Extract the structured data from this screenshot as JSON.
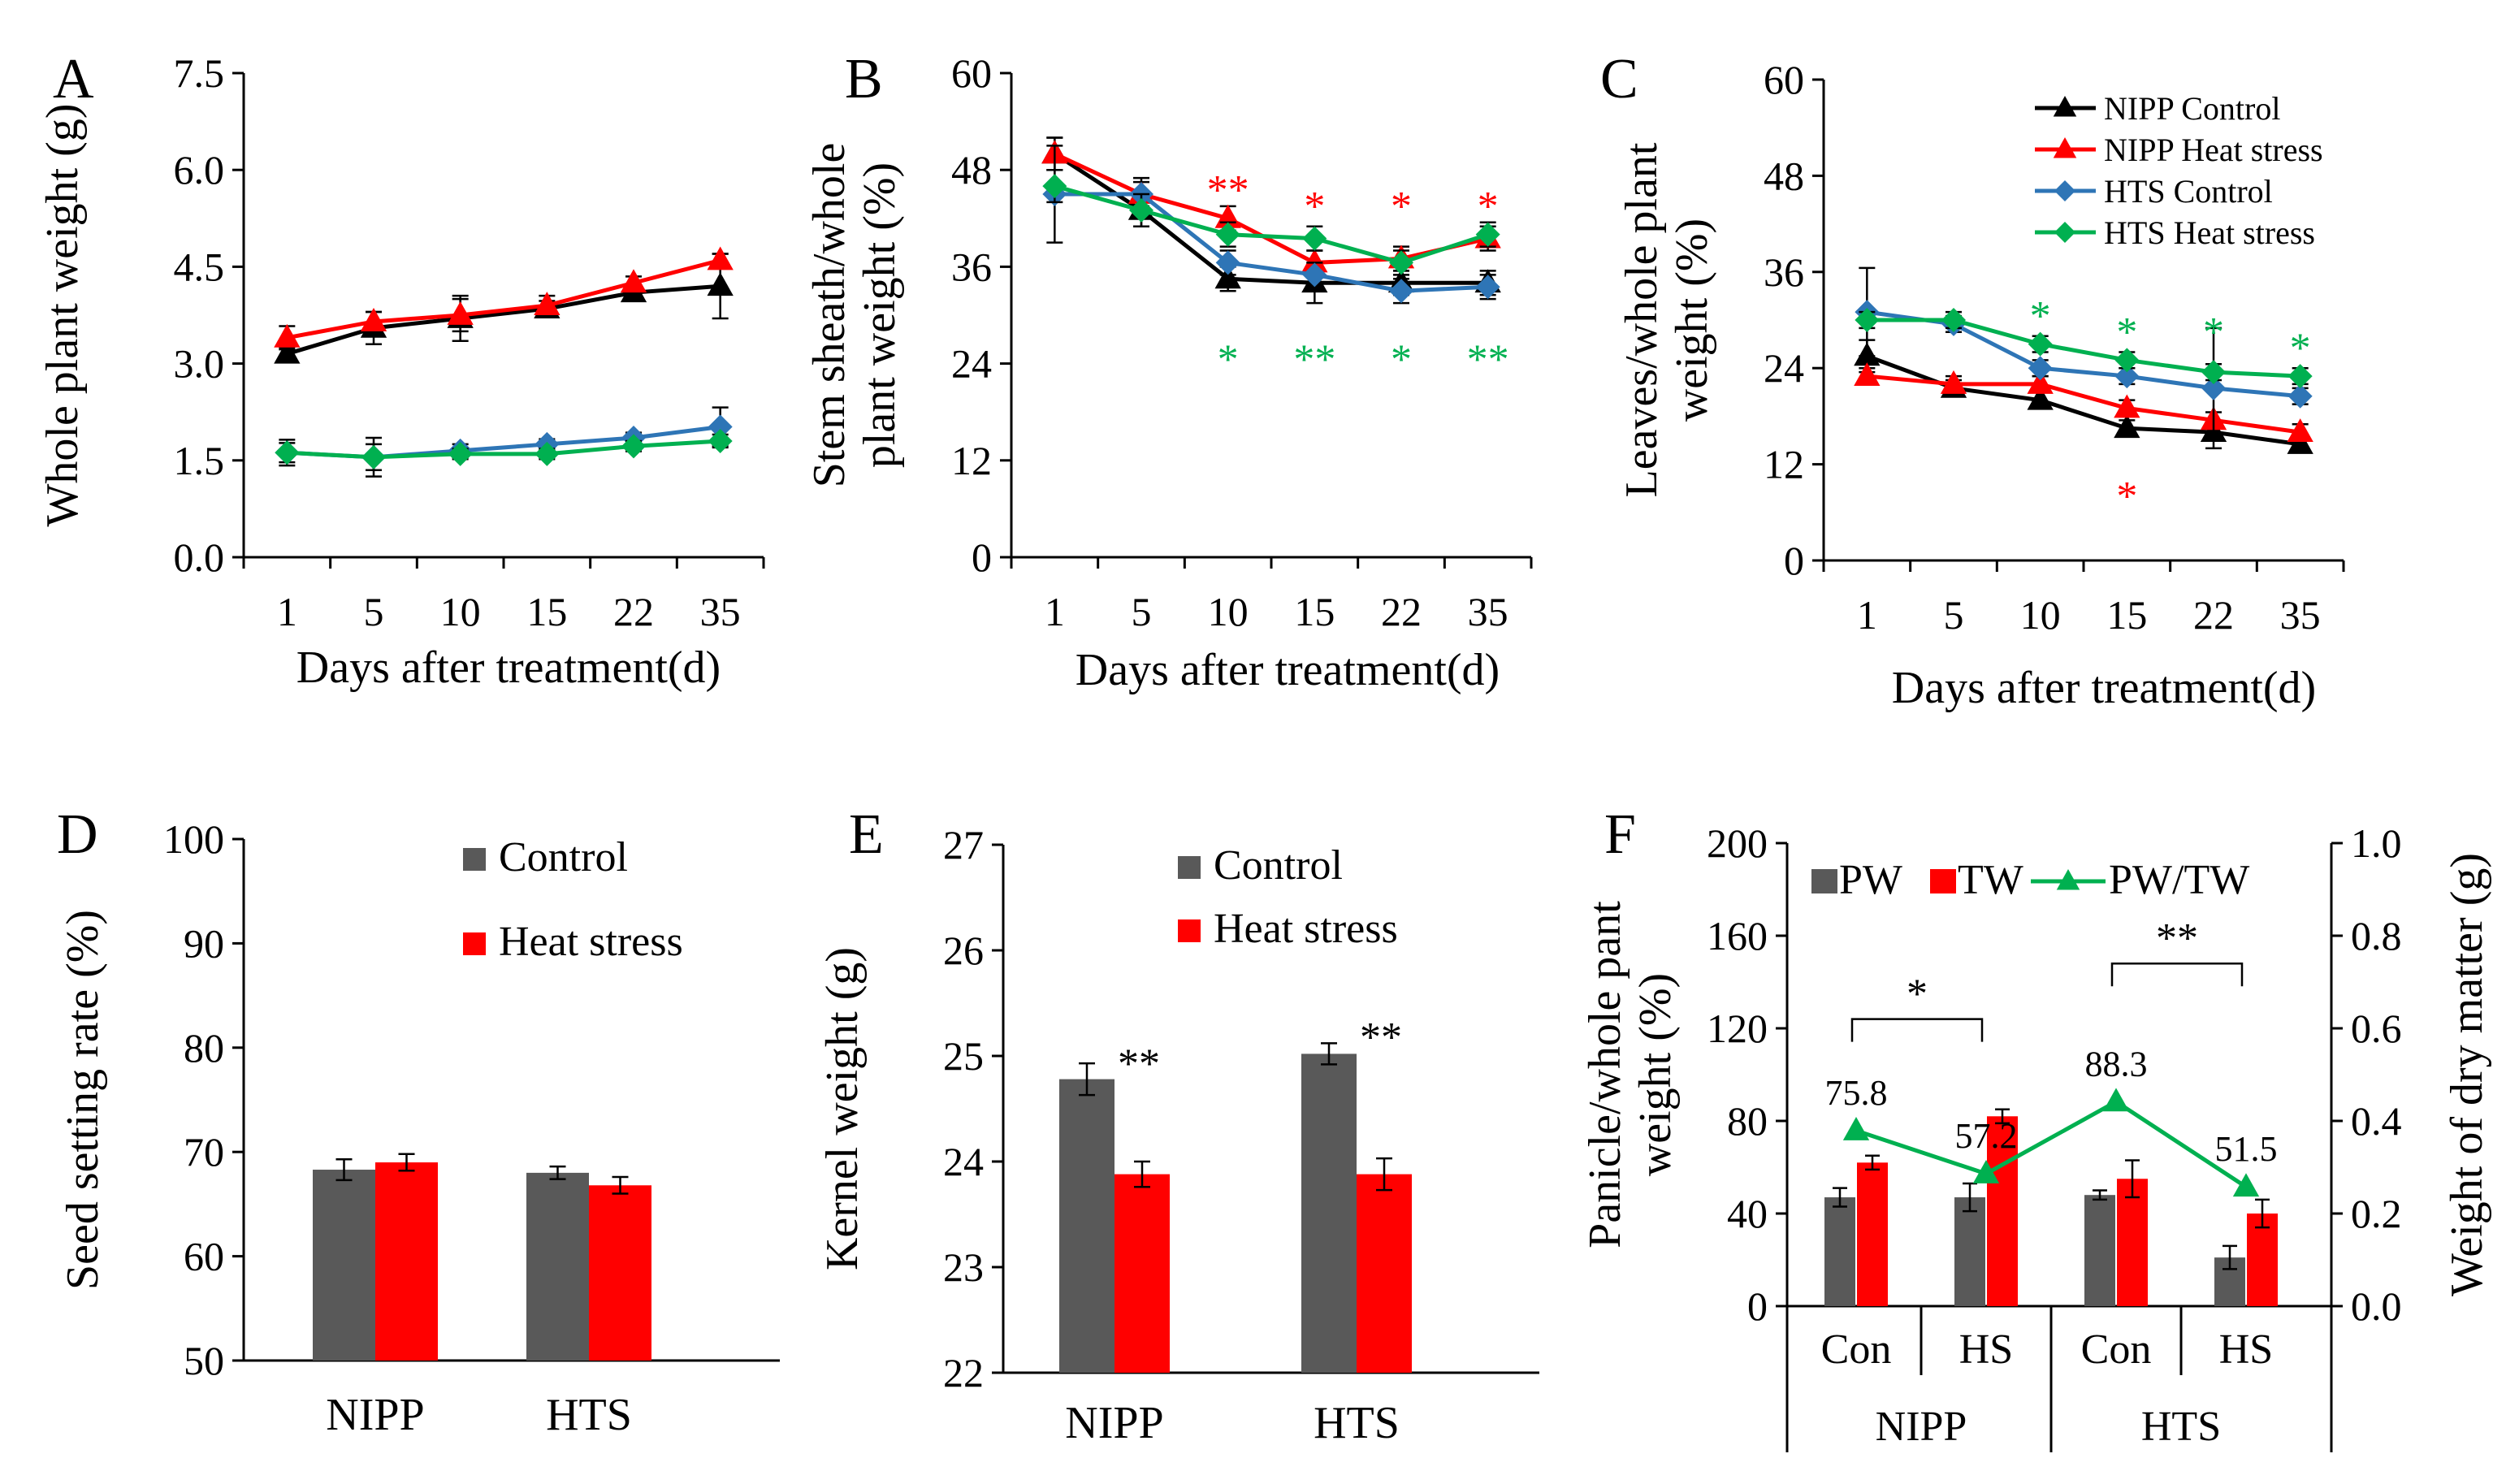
{
  "colors": {
    "nipp_control": "#000000",
    "nipp_heat": "#ff0000",
    "hts_control": "#2e75b6",
    "hts_heat": "#00b050",
    "bar_control": "#595959",
    "bar_heat": "#ff0000"
  },
  "chart_data": [
    {
      "panel": "A",
      "type": "line",
      "xlabel": "Days after treatment(d)",
      "ylabel": "Whole plant weight (g)",
      "categories": [
        "1",
        "5",
        "10",
        "15",
        "22",
        "35"
      ],
      "ylim": [
        0,
        7.5
      ],
      "yticks": [
        "0.0",
        "1.5",
        "3.0",
        "4.5",
        "6.0",
        "7.5"
      ],
      "series": [
        {
          "name": "NIPP Control",
          "key": "nipp_control",
          "marker": "triangle",
          "values": [
            3.15,
            3.55,
            3.7,
            3.85,
            4.1,
            4.2
          ],
          "err": [
            0.1,
            0.25,
            0.35,
            0.12,
            0.1,
            0.5
          ]
        },
        {
          "name": "NIPP Heat stress",
          "key": "nipp_heat",
          "marker": "triangle",
          "values": [
            3.4,
            3.65,
            3.75,
            3.9,
            4.25,
            4.6
          ],
          "err": [
            0.18,
            0.15,
            0.25,
            0.15,
            0.1,
            0.1
          ]
        },
        {
          "name": "HTS Control",
          "key": "hts_control",
          "marker": "diamond",
          "values": [
            1.62,
            1.55,
            1.65,
            1.75,
            1.85,
            2.02
          ],
          "err": [
            0.15,
            0.3,
            0.1,
            0.08,
            0.08,
            0.3
          ]
        },
        {
          "name": "HTS Heat stress",
          "key": "hts_heat",
          "marker": "diamond",
          "values": [
            1.62,
            1.55,
            1.6,
            1.6,
            1.72,
            1.8
          ],
          "err": [
            0.2,
            0.2,
            0.08,
            0.08,
            0.08,
            0.1
          ]
        }
      ],
      "annotations": []
    },
    {
      "panel": "B",
      "type": "line",
      "xlabel": "Days after treatment(d)",
      "ylabel": "Stem sheath/whole plant weight (%)",
      "ylabel_lines": [
        "Stem sheath/whole",
        "plant weight (%)"
      ],
      "categories": [
        "1",
        "5",
        "10",
        "15",
        "22",
        "35"
      ],
      "ylim": [
        0,
        60
      ],
      "yticks": [
        "0",
        "12",
        "24",
        "36",
        "48",
        "60"
      ],
      "series": [
        {
          "name": "NIPP Control",
          "key": "nipp_control",
          "marker": "triangle",
          "values": [
            50,
            43,
            34.5,
            34,
            34,
            34
          ],
          "err": [
            2,
            2,
            1.5,
            2.5,
            1.5,
            1.5
          ]
        },
        {
          "name": "NIPP Heat stress",
          "key": "nipp_heat",
          "marker": "triangle",
          "values": [
            50,
            45,
            42,
            36.5,
            37,
            39.5
          ],
          "err": [
            2,
            1.5,
            1.5,
            1.5,
            1.5,
            1.5
          ]
        },
        {
          "name": "HTS Control",
          "key": "hts_control",
          "marker": "diamond",
          "values": [
            45,
            45,
            36.5,
            35,
            33,
            33.5
          ],
          "err": [
            6,
            2,
            1.5,
            1.5,
            1.5,
            1.5
          ]
        },
        {
          "name": "HTS Heat stress",
          "key": "hts_heat",
          "marker": "diamond",
          "values": [
            46,
            43,
            40,
            39.5,
            36.5,
            40
          ],
          "err": [
            2,
            2,
            1.5,
            1.5,
            1.5,
            1.5
          ]
        }
      ],
      "annotations": [
        {
          "text": "**",
          "color_key": "nipp_heat",
          "x_index": 2,
          "y": 46
        },
        {
          "text": "*",
          "color_key": "nipp_heat",
          "x_index": 3,
          "y": 44
        },
        {
          "text": "*",
          "color_key": "nipp_heat",
          "x_index": 4,
          "y": 44
        },
        {
          "text": "*",
          "color_key": "nipp_heat",
          "x_index": 5,
          "y": 44
        },
        {
          "text": "*",
          "color_key": "hts_heat",
          "x_index": 2,
          "y": 25
        },
        {
          "text": "**",
          "color_key": "hts_heat",
          "x_index": 3,
          "y": 25
        },
        {
          "text": "*",
          "color_key": "hts_heat",
          "x_index": 4,
          "y": 25
        },
        {
          "text": "**",
          "color_key": "hts_heat",
          "x_index": 5,
          "y": 25
        }
      ]
    },
    {
      "panel": "C",
      "type": "line",
      "xlabel": "Days after treatment(d)",
      "ylabel": "Leaves/whole plant weight (%)",
      "ylabel_lines": [
        "Leaves/whole plant",
        "weight (%)"
      ],
      "categories": [
        "1",
        "5",
        "10",
        "15",
        "22",
        "35"
      ],
      "ylim": [
        0,
        60
      ],
      "yticks": [
        "0",
        "12",
        "24",
        "36",
        "48",
        "60"
      ],
      "legend": [
        "NIPP Control",
        "NIPP Heat stress",
        "HTS Control",
        "HTS Heat stress"
      ],
      "series": [
        {
          "name": "NIPP Control",
          "key": "nipp_control",
          "marker": "triangle",
          "values": [
            25.5,
            21.5,
            20,
            16.5,
            16,
            14.5
          ],
          "err": [
            2,
            1,
            1,
            1,
            1,
            1
          ]
        },
        {
          "name": "NIPP Heat stress",
          "key": "nipp_heat",
          "marker": "triangle",
          "values": [
            23,
            22,
            22,
            19,
            17.5,
            16
          ],
          "err": [
            1,
            1,
            1,
            1,
            1,
            1
          ]
        },
        {
          "name": "HTS Control",
          "key": "hts_control",
          "marker": "diamond",
          "values": [
            31,
            29.5,
            24,
            23,
            21.5,
            20.5
          ],
          "err": [
            5.5,
            1,
            1,
            1,
            7.5,
            1
          ]
        },
        {
          "name": "HTS Heat stress",
          "key": "hts_heat",
          "marker": "diamond",
          "values": [
            30,
            30,
            27,
            25,
            23.5,
            23
          ],
          "err": [
            1,
            1,
            1,
            1,
            1,
            1
          ]
        }
      ],
      "annotations": [
        {
          "text": "*",
          "color_key": "hts_heat",
          "x_index": 2,
          "y": 31
        },
        {
          "text": "*",
          "color_key": "hts_heat",
          "x_index": 3,
          "y": 29
        },
        {
          "text": "*",
          "color_key": "hts_heat",
          "x_index": 4,
          "y": 29
        },
        {
          "text": "*",
          "color_key": "hts_heat",
          "x_index": 5,
          "y": 27
        },
        {
          "text": "*",
          "color_key": "nipp_heat",
          "x_index": 3,
          "y": 8.5
        }
      ]
    },
    {
      "panel": "D",
      "type": "bar",
      "ylabel": "Seed setting rate (%)",
      "categories": [
        "NIPP",
        "HTS"
      ],
      "ylim": [
        50,
        100
      ],
      "yticks": [
        "50",
        "60",
        "70",
        "80",
        "90",
        "100"
      ],
      "legend": [
        "Control",
        "Heat stress"
      ],
      "series": [
        {
          "name": "Control",
          "key": "bar_control",
          "values": [
            68.3,
            68.0
          ],
          "err": [
            1.0,
            0.6
          ]
        },
        {
          "name": "Heat stress",
          "key": "bar_heat",
          "values": [
            69.0,
            66.8
          ],
          "err": [
            0.8,
            0.8
          ]
        }
      ],
      "annotations": []
    },
    {
      "panel": "E",
      "type": "bar",
      "ylabel": "Kernel weight (g)",
      "categories": [
        "NIPP",
        "HTS"
      ],
      "ylim": [
        22,
        27
      ],
      "yticks": [
        "22",
        "23",
        "24",
        "25",
        "26",
        "27"
      ],
      "legend": [
        "Control",
        "Heat stress"
      ],
      "series": [
        {
          "name": "Control",
          "key": "bar_control",
          "values": [
            24.78,
            25.02
          ],
          "err": [
            0.15,
            0.1
          ]
        },
        {
          "name": "Heat stress",
          "key": "bar_heat",
          "values": [
            23.88,
            23.88
          ],
          "err": [
            0.12,
            0.15
          ]
        }
      ],
      "annotations": [
        {
          "text": "**",
          "x_index": 0,
          "y": 24.95
        },
        {
          "text": "**",
          "x_index": 1,
          "y": 25.2
        }
      ]
    },
    {
      "panel": "F",
      "type": "bar",
      "ylabel": "Panicle/whole pant weight (%)",
      "ylabel_lines": [
        "Panicle/whole pant",
        "weight (%)"
      ],
      "y2label": "Weight of dry matter (g)",
      "categories": [
        "Con",
        "HS",
        "Con",
        "HS"
      ],
      "groups": [
        "NIPP",
        "HTS"
      ],
      "ylim": [
        0,
        200
      ],
      "yticks": [
        "0",
        "40",
        "80",
        "120",
        "160",
        "200"
      ],
      "y2lim": [
        0,
        1.0
      ],
      "y2ticks": [
        "0.0",
        "0.2",
        "0.4",
        "0.6",
        "0.8",
        "1.0"
      ],
      "legend": [
        "PW",
        "TW",
        "PW/TW"
      ],
      "series": [
        {
          "name": "PW",
          "key": "bar_control",
          "axis": "y2",
          "values": [
            0.235,
            0.235,
            0.24,
            0.105
          ],
          "err": [
            0.02,
            0.03,
            0.01,
            0.025
          ]
        },
        {
          "name": "TW",
          "key": "bar_heat",
          "axis": "y2",
          "values": [
            0.31,
            0.41,
            0.275,
            0.2
          ],
          "err": [
            0.015,
            0.015,
            0.04,
            0.03
          ]
        },
        {
          "name": "PW/TW",
          "key": "hts_heat",
          "axis": "y",
          "type": "line",
          "values": [
            75.8,
            57.2,
            88.3,
            51.5
          ]
        }
      ],
      "value_labels": [
        "75.8",
        "57.2",
        "88.3",
        "51.5"
      ],
      "annotations": [
        {
          "text": "*",
          "from": 0,
          "to": 1,
          "y": 124
        },
        {
          "text": "**",
          "from": 2,
          "to": 3,
          "y": 148
        }
      ]
    }
  ]
}
